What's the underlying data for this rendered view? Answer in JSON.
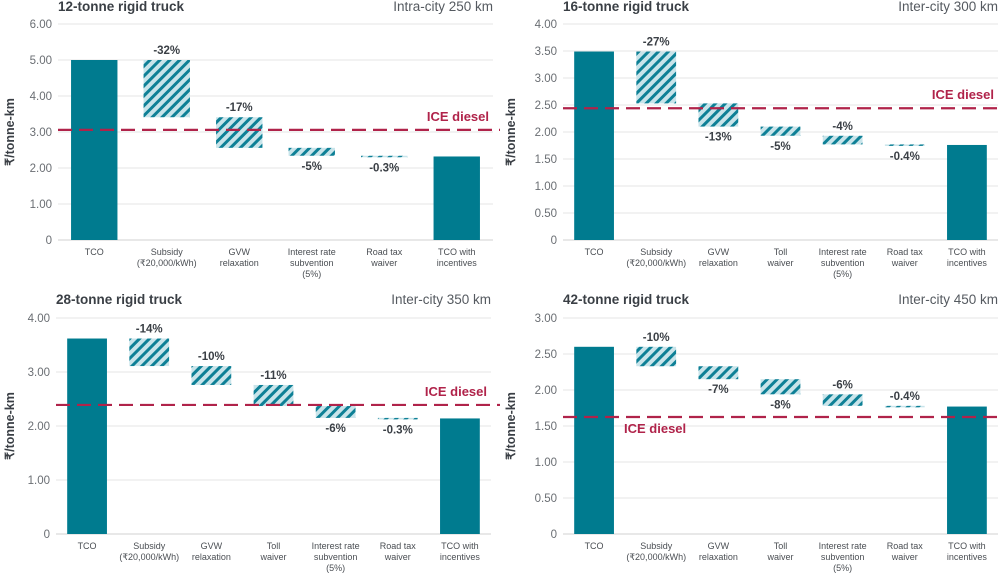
{
  "colors": {
    "bar": "#007b8f",
    "hatch_bg": "#c8e4ea",
    "hatch_stripe": "#0e8096",
    "ice_line": "#b0234a",
    "grid": "#e6e6e6"
  },
  "chart_data": [
    {
      "type": "waterfall",
      "title": "12-tonne rigid truck",
      "subtitle": "Intra-city 250 km",
      "ylabel": "₹/tonne-km",
      "ylim": [
        0,
        6
      ],
      "yticks": [
        "0",
        "1.00",
        "2.00",
        "3.00",
        "4.00",
        "5.00",
        "6.00"
      ],
      "grid": true,
      "categories": [
        [
          "TCO"
        ],
        [
          "Subsidy",
          "(₹20,000/kWh)"
        ],
        [
          "GVW",
          "relaxation"
        ],
        [
          "Interest rate",
          "subvention",
          "(5%)"
        ],
        [
          "Road tax",
          "waiver"
        ],
        [
          "TCO with",
          "incentives"
        ]
      ],
      "steps": [
        {
          "kind": "total",
          "value": 5.0
        },
        {
          "kind": "decrease",
          "from": 5.0,
          "to": 3.41,
          "label": "-32%",
          "label_position": "above"
        },
        {
          "kind": "decrease",
          "from": 3.41,
          "to": 2.56,
          "label": "-17%",
          "label_position": "above"
        },
        {
          "kind": "decrease",
          "from": 2.56,
          "to": 2.34,
          "label": "-5%",
          "label_position": "below"
        },
        {
          "kind": "decrease",
          "from": 2.34,
          "to": 2.32,
          "label": "-0.3%",
          "label_position": "below"
        },
        {
          "kind": "total",
          "value": 2.32
        }
      ],
      "reference": {
        "label": "ICE diesel",
        "value": 3.06,
        "label_position": "above-right"
      }
    },
    {
      "type": "waterfall",
      "title": "16-tonne rigid truck",
      "subtitle": "Inter-city 300 km",
      "ylabel": "₹/tonne-km",
      "ylim": [
        0,
        4
      ],
      "yticks": [
        "0",
        "0.50",
        "1.00",
        "1.50",
        "2.00",
        "2.50",
        "3.00",
        "3.50",
        "4.00"
      ],
      "grid": true,
      "categories": [
        [
          "TCO"
        ],
        [
          "Subsidy",
          "(₹20,000/kWh)"
        ],
        [
          "GVW",
          "relaxation"
        ],
        [
          "Toll",
          "waiver"
        ],
        [
          "Interest rate",
          "subvention",
          "(5%)"
        ],
        [
          "Road tax",
          "waiver"
        ],
        [
          "TCO with",
          "incentives"
        ]
      ],
      "steps": [
        {
          "kind": "total",
          "value": 3.49
        },
        {
          "kind": "decrease",
          "from": 3.49,
          "to": 2.53,
          "label": "-27%",
          "label_position": "above"
        },
        {
          "kind": "decrease",
          "from": 2.53,
          "to": 2.1,
          "label": "-13%",
          "label_position": "below"
        },
        {
          "kind": "decrease",
          "from": 2.1,
          "to": 1.93,
          "label": "-5%",
          "label_position": "below"
        },
        {
          "kind": "decrease",
          "from": 1.93,
          "to": 1.77,
          "label": "-4%",
          "label_position": "above"
        },
        {
          "kind": "decrease",
          "from": 1.77,
          "to": 1.76,
          "label": "-0.4%",
          "label_position": "below"
        },
        {
          "kind": "total",
          "value": 1.76
        }
      ],
      "reference": {
        "label": "ICE diesel",
        "value": 2.44,
        "label_position": "above-right"
      }
    },
    {
      "type": "waterfall",
      "title": "28-tonne rigid truck",
      "subtitle": "Inter-city 350 km",
      "ylabel": "₹/tonne-km",
      "ylim": [
        0,
        4
      ],
      "yticks": [
        "0",
        "1.00",
        "2.00",
        "3.00",
        "4.00"
      ],
      "grid": true,
      "categories": [
        [
          "TCO"
        ],
        [
          "Subsidy",
          "(₹20,000/kWh)"
        ],
        [
          "GVW",
          "relaxation"
        ],
        [
          "Toll",
          "waiver"
        ],
        [
          "Interest rate",
          "subvention",
          "(5%)"
        ],
        [
          "Road tax",
          "waiver"
        ],
        [
          "TCO with",
          "incentives"
        ]
      ],
      "steps": [
        {
          "kind": "total",
          "value": 3.62
        },
        {
          "kind": "decrease",
          "from": 3.62,
          "to": 3.11,
          "label": "-14%",
          "label_position": "above"
        },
        {
          "kind": "decrease",
          "from": 3.11,
          "to": 2.76,
          "label": "-10%",
          "label_position": "above"
        },
        {
          "kind": "decrease",
          "from": 2.76,
          "to": 2.37,
          "label": "-11%",
          "label_position": "above"
        },
        {
          "kind": "decrease",
          "from": 2.37,
          "to": 2.15,
          "label": "-6%",
          "label_position": "below"
        },
        {
          "kind": "decrease",
          "from": 2.15,
          "to": 2.14,
          "label": "-0.3%",
          "label_position": "below"
        },
        {
          "kind": "total",
          "value": 2.14
        }
      ],
      "reference": {
        "label": "ICE diesel",
        "value": 2.39,
        "label_position": "above-right"
      }
    },
    {
      "type": "waterfall",
      "title": "42-tonne rigid truck",
      "subtitle": "Inter-city 450 km",
      "ylabel": "₹/tonne-km",
      "ylim": [
        0,
        3
      ],
      "yticks": [
        "0",
        "0.50",
        "1.00",
        "1.50",
        "2.00",
        "2.50",
        "3.00"
      ],
      "grid": true,
      "categories": [
        [
          "TCO"
        ],
        [
          "Subsidy",
          "(₹20,000/kWh)"
        ],
        [
          "GVW",
          "relaxation"
        ],
        [
          "Toll",
          "waiver"
        ],
        [
          "Interest rate",
          "subvention",
          "(5%)"
        ],
        [
          "Road tax",
          "waiver"
        ],
        [
          "TCO with",
          "incentives"
        ]
      ],
      "steps": [
        {
          "kind": "total",
          "value": 2.6
        },
        {
          "kind": "decrease",
          "from": 2.6,
          "to": 2.33,
          "label": "-10%",
          "label_position": "above"
        },
        {
          "kind": "decrease",
          "from": 2.33,
          "to": 2.15,
          "label": "-7%",
          "label_position": "below"
        },
        {
          "kind": "decrease",
          "from": 2.15,
          "to": 1.94,
          "label": "-8%",
          "label_position": "below"
        },
        {
          "kind": "decrease",
          "from": 1.94,
          "to": 1.78,
          "label": "-6%",
          "label_position": "above"
        },
        {
          "kind": "decrease",
          "from": 1.78,
          "to": 1.77,
          "label": "-0.4%",
          "label_position": "above"
        },
        {
          "kind": "total",
          "value": 1.77
        }
      ],
      "reference": {
        "label": "ICE diesel",
        "value": 1.625,
        "label_position": "below-left"
      }
    }
  ]
}
